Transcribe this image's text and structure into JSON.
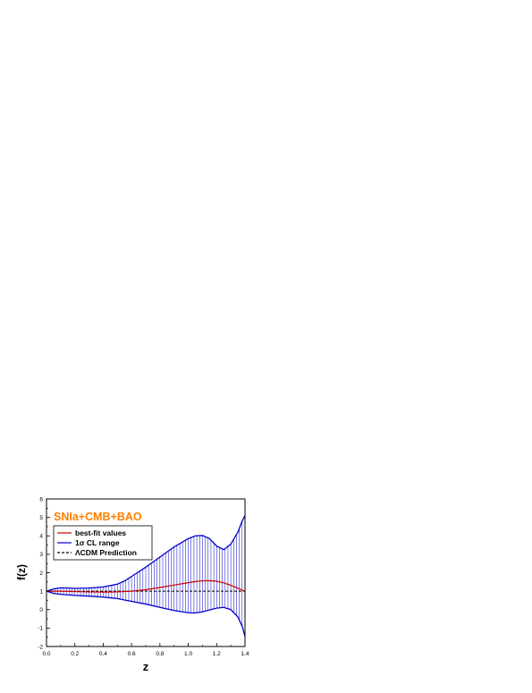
{
  "chart_data": {
    "type": "line",
    "title": "",
    "annotation": "SNIa+CMB+BAO",
    "annotation_color": "#ff7f00",
    "xlabel": "z",
    "ylabel": "f(z)",
    "xlim": [
      0.0,
      1.4
    ],
    "ylim": [
      -2,
      6
    ],
    "x_ticks": [
      "0.0",
      "0.2",
      "0.4",
      "0.6",
      "0.8",
      "1.0",
      "1.2",
      "1.4"
    ],
    "y_ticks": [
      "-2",
      "-1",
      "0",
      "1",
      "2",
      "3",
      "4",
      "5",
      "6"
    ],
    "grid": false,
    "legend_position": "top-left",
    "legend": [
      {
        "label": "best-fit values",
        "color": "#cc0000",
        "style": "solid"
      },
      {
        "label": "1σ CL range",
        "color": "#0000cc",
        "style": "solid"
      },
      {
        "label": "ΛCDM Prediction",
        "color": "#000000",
        "style": "dashed"
      }
    ],
    "series": [
      {
        "name": "best-fit values",
        "color": "#cc0000",
        "x": [
          0.0,
          0.1,
          0.2,
          0.3,
          0.4,
          0.5,
          0.6,
          0.7,
          0.8,
          0.9,
          1.0,
          1.05,
          1.1,
          1.15,
          1.2,
          1.25,
          1.3,
          1.35,
          1.4
        ],
        "y": [
          1.0,
          1.0,
          0.98,
          0.96,
          0.95,
          0.96,
          1.0,
          1.08,
          1.2,
          1.33,
          1.46,
          1.52,
          1.56,
          1.57,
          1.54,
          1.45,
          1.32,
          1.16,
          1.0
        ]
      },
      {
        "name": "1σ CL range",
        "color": "#0000cc",
        "x": [
          0.0,
          0.05,
          0.1,
          0.15,
          0.2,
          0.3,
          0.4,
          0.5,
          0.55,
          0.6,
          0.7,
          0.8,
          0.9,
          1.0,
          1.05,
          1.1,
          1.15,
          1.2,
          1.25,
          1.3,
          1.35,
          1.38,
          1.4
        ],
        "y_upper": [
          1.0,
          1.12,
          1.18,
          1.17,
          1.15,
          1.17,
          1.23,
          1.38,
          1.55,
          1.8,
          2.3,
          2.85,
          3.4,
          3.85,
          4.0,
          4.02,
          3.85,
          3.45,
          3.25,
          3.55,
          4.2,
          4.8,
          5.1
        ],
        "y_lower": [
          1.0,
          0.88,
          0.83,
          0.8,
          0.77,
          0.73,
          0.68,
          0.6,
          0.52,
          0.45,
          0.3,
          0.12,
          -0.05,
          -0.17,
          -0.18,
          -0.12,
          -0.02,
          0.08,
          0.12,
          0.0,
          -0.4,
          -0.9,
          -1.45
        ]
      },
      {
        "name": "ΛCDM Prediction",
        "color": "#000000",
        "x": [
          0.0,
          1.4
        ],
        "y": [
          1.0,
          1.0
        ]
      }
    ]
  }
}
